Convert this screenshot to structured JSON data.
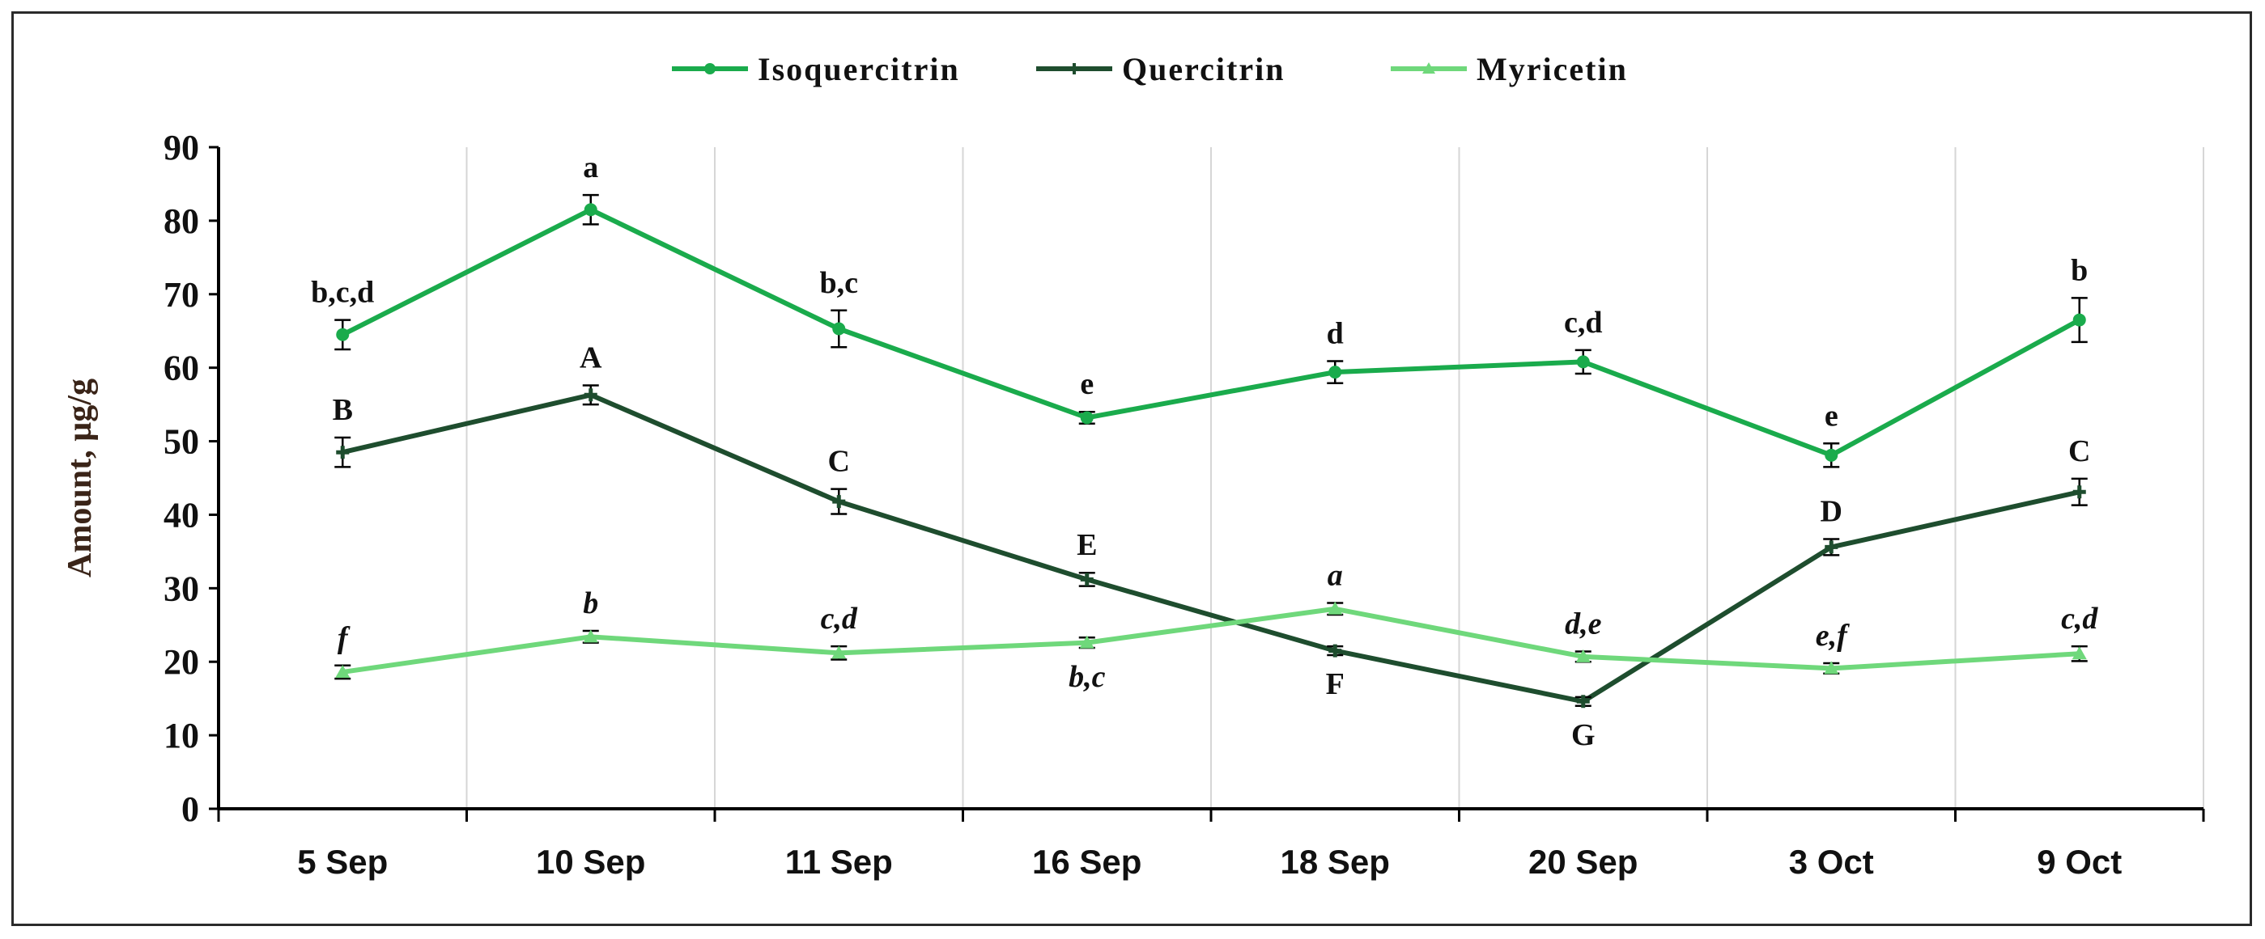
{
  "chart_data": {
    "type": "line",
    "title": "",
    "xlabel": "",
    "ylabel": "Amount,  µg/g",
    "ylim": [
      0,
      90
    ],
    "yticks": [
      0,
      10,
      20,
      30,
      40,
      50,
      60,
      70,
      80,
      90
    ],
    "grid": "vertical",
    "legend_position": "top-center",
    "categories": [
      "5 Sep",
      "10 Sep",
      "11 Sep",
      "16 Sep",
      "18 Sep",
      "20 Sep",
      "3 Oct",
      "9 Oct"
    ],
    "series": [
      {
        "name": "Isoquercitrin",
        "color": "#1aab4c",
        "marker": "circle",
        "values": [
          64.5,
          81.5,
          65.3,
          53.2,
          59.4,
          60.8,
          48.1,
          66.5
        ],
        "errors": [
          2.0,
          2.0,
          2.5,
          0.8,
          1.5,
          1.6,
          1.6,
          3.0
        ],
        "letters": [
          "b,c,d",
          "a",
          "b,c",
          "e",
          "d",
          "c,d",
          "e",
          "b"
        ],
        "letter_positions": [
          "above",
          "above",
          "above",
          "above",
          "above",
          "above",
          "above",
          "above"
        ],
        "letter_style": "normal"
      },
      {
        "name": "Quercitrin",
        "color": "#1e4d2e",
        "marker": "plus",
        "values": [
          48.5,
          56.3,
          41.8,
          31.2,
          21.5,
          14.6,
          35.6,
          43.1
        ],
        "errors": [
          2.0,
          1.3,
          1.7,
          0.9,
          0.6,
          0.6,
          1.1,
          1.8
        ],
        "letters": [
          "B",
          "A",
          "C",
          "E",
          "F",
          "G",
          "D",
          "C"
        ],
        "letter_positions": [
          "above",
          "above",
          "above",
          "above",
          "below",
          "below",
          "above",
          "above"
        ],
        "letter_style": "normal"
      },
      {
        "name": "Myricetin",
        "color": "#6fd87b",
        "marker": "triangle",
        "values": [
          18.6,
          23.4,
          21.2,
          22.6,
          27.2,
          20.7,
          19.1,
          21.1
        ],
        "errors": [
          0.9,
          0.8,
          0.9,
          0.7,
          0.8,
          0.7,
          0.7,
          1.0
        ],
        "letters": [
          "f",
          "b",
          "c,d",
          "b,c",
          "a",
          "d,e",
          "e,f",
          "c,d"
        ],
        "letter_positions": [
          "above",
          "above",
          "above",
          "below",
          "above",
          "above",
          "above",
          "above"
        ],
        "letter_style": "italic"
      }
    ]
  }
}
